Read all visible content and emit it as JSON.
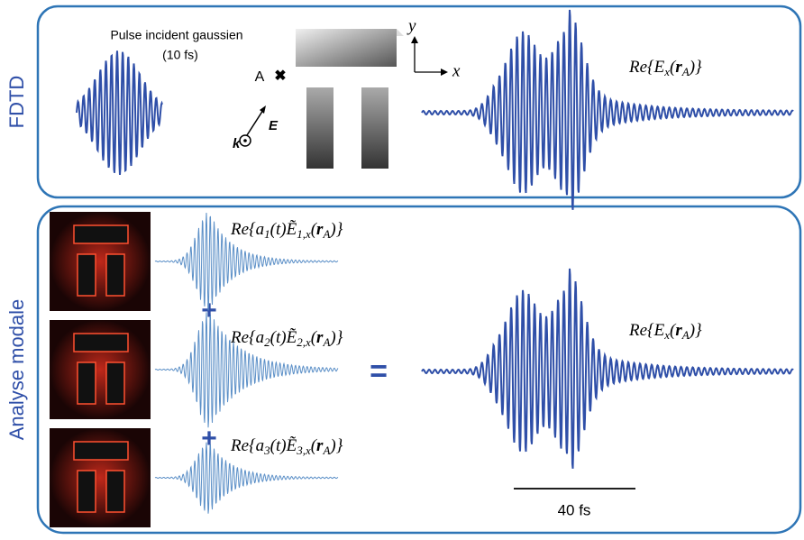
{
  "labels": {
    "fdtd": "FDTD",
    "modal": "Analyse modale"
  },
  "fdtd": {
    "pulse_title": "Pulse incident gaussien",
    "pulse_duration": "(10 fs)",
    "point": "A",
    "field": "E",
    "wavevector": "k",
    "axis_y": "y",
    "axis_x": "x",
    "formula": [
      "Re{E",
      "x",
      "(",
      "r",
      "A",
      ")}"
    ]
  },
  "modal": {
    "modes": [
      {
        "formula": [
          "Re{a",
          "1",
          "(t)",
          "Ẽ",
          "1,x",
          "(",
          "r",
          "A",
          ")}"
        ]
      },
      {
        "formula": [
          "Re{a",
          "2",
          "(t)",
          "Ẽ",
          "2,x",
          "(",
          "r",
          "A",
          ")}"
        ]
      },
      {
        "formula": [
          "Re{a",
          "3",
          "(t)",
          "Ẽ",
          "3,x",
          "(",
          "r",
          "A",
          ")}"
        ]
      }
    ],
    "plus": [
      "+",
      "+"
    ],
    "equals": "=",
    "formula": [
      "Re{E",
      "x",
      "(",
      "r",
      "A",
      ")}"
    ],
    "scale_bar": "40 fs"
  }
}
